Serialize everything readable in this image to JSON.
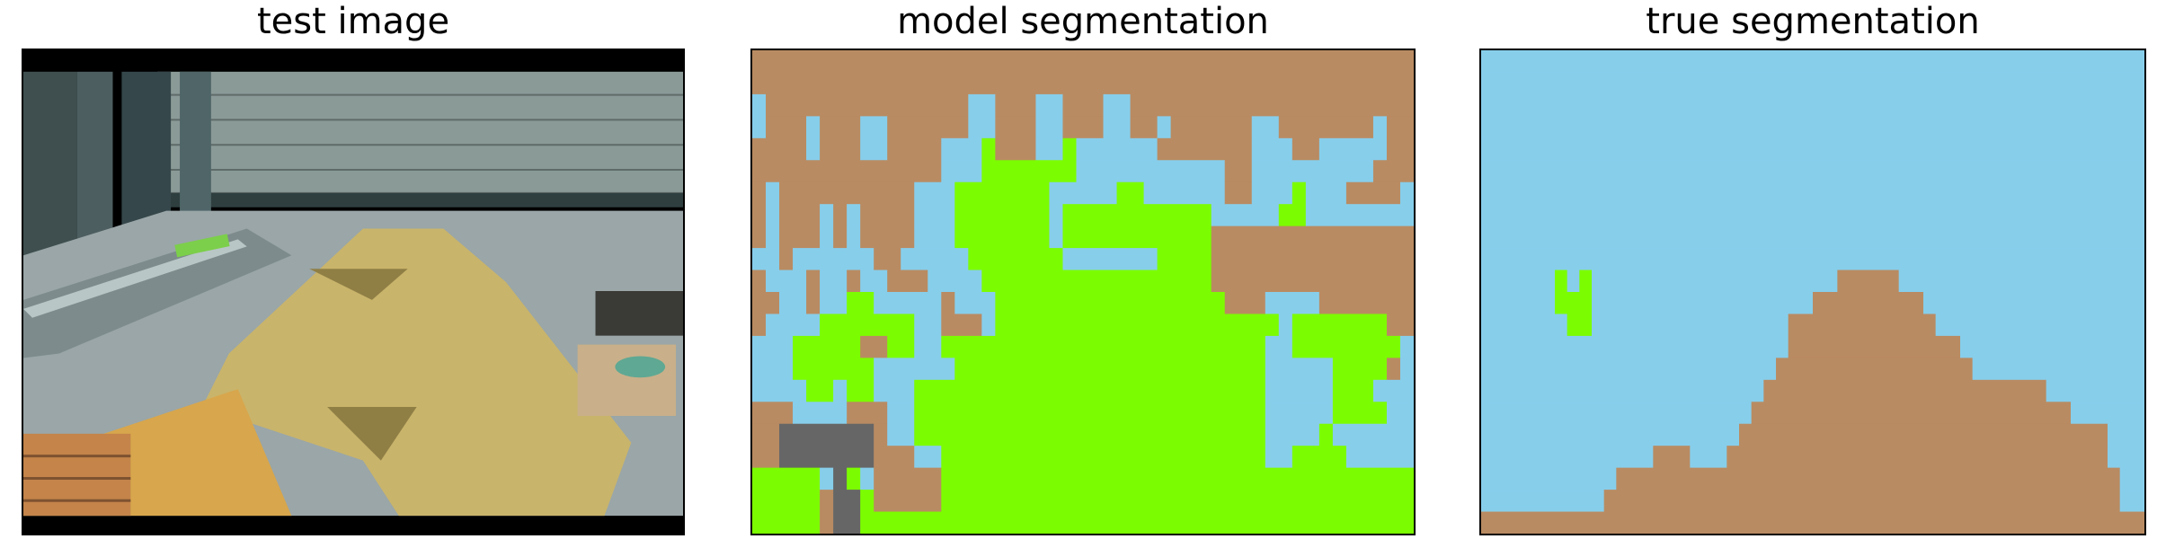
{
  "panels": {
    "test_image": {
      "title": "test image"
    },
    "model_segmentation": {
      "title": "model segmentation"
    },
    "true_segmentation": {
      "title": "true segmentation"
    }
  },
  "colors": {
    "sky_blue": "#87ceeb",
    "brown": "#b98b62",
    "green": "#7cfc00",
    "gray": "#666666"
  },
  "legend_codes": {
    "B": "sky_blue",
    "O": "brown",
    "G": "green",
    "D": "gray"
  },
  "model_segmentation_grid": [
    "OOOOOOOOOOOOOOOOOOOOOOOOOOOOOOOOOOOOOOOOOOOOOOOOO",
    "OOOOOOOOOOOOOOOOOOOOOOOOOOOOOOOOOOOOOOOOOOOOOOOOO",
    "BOOOOOOOOOOOOOOOBBOOOBBOOOBBOOOOOOOOOOOOOOOOOOOOO",
    "BOOOBOOOBBOOOOOOBBOOOBBOOOBBOOBOOOOOOBBOOOOOOOBOO",
    "OOOOBOOOBBOOOOBBBGOOOBBGBBBBBBOOOOOOOBBBOOBBBBBOO",
    "OOOOOOOOOOOOOOBBBGGGGGGGBBBBBBBBBBBOOBBBBBBBBBOOO",
    "OBOOOOOOOOOOBBBGGGGGGGBBBBBGGBBBBBBOOBBBGBBBOOOOB",
    "OBOOOBOBOOOOBBBGGGGGGGBGGGGGGGGGGGBBBBBGGBBBBBBBB",
    "OBOOOBOBOOOOBBBGGGGGGGBGGGGGGGGGGGOOOOOOOOOOOOOOO",
    "BBOBBBBBBOOBBBBBGGGGGGGBBBBBBBGGGGOOOOOOOOOOOOOOO",
    "OBBBOBBOBBOOOBBBBGGGGGGGGGGGGGGGGGOOOOOOOOOOOOOOO",
    "OOBBOBBGGBBBBBOBBBGGGGGGGGGGGGGGGGGOOOBBBBOOOOOOO",
    "OBBBBGGGGGGGBBOOOBGGGGGGGGGGGGGGGGGGGGGBGGGGGGGOO",
    "BBBGGGGGOOGGBBGGGGGGGGGGGGGGGGGGGGGGGGBBGGGGGGGGB",
    "BBBGGGGGGBBBBBBGGGGGGGGGGGGGGGGGGGGGGGBBBBBGGGGOB",
    "BBBBGGBGGBBBGGGGGGGGGGGGGGGGGGGGGGGGGGBBBBBGGGBBB",
    "OOOBBBBOOOBBGGGGGGGGGGGGGGGGGGGGGGGGGGBBBBBGGGGBB",
    "OODDDDDDDOBBGGGGGGGGGGGGGGGGGGGGGGGGGGBBBBGBBBBBB",
    "OODDDDDDDOOOBBGGGGGGGGGGGGGGGGGGGGGGGGBBGGGGBBBBB",
    "GGGGGBDGBOOOOOGGGGGGGGGGGGGGGGGGGGGGGGGGGGGGGGGGG",
    "GGGGGODDGOOOOOGGGGGGGGGGGGGGGGGGGGGGGGGGGGGGGGGGG",
    "GGGGGODDGGGGGGGGGGGGGGGGGGGGGGGGGGGGGGGGGGGGGGGGG"
  ],
  "true_segmentation_grid": [
    "BBBBBBBBBBBBBBBBBBBBBBBBBBBBBBBBBBBBBBBBBBBBBBBBBBBBBB",
    "BBBBBBBBBBBBBBBBBBBBBBBBBBBBBBBBBBBBBBBBBBBBBBBBBBBBBB",
    "BBBBBBBBBBBBBBBBBBBBBBBBBBBBBBBBBBBBBBBBBBBBBBBBBBBBBB",
    "BBBBBBBBBBBBBBBBBBBBBBBBBBBBBBBBBBBBBBBBBBBBBBBBBBBBBB",
    "BBBBBBBBBBBBBBBBBBBBBBBBBBBBBBBBBBBBBBBBBBBBBBBBBBBBBB",
    "BBBBBBBBBBBBBBBBBBBBBBBBBBBBBBBBBBBBBBBBBBBBBBBBBBBBBB",
    "BBBBBBBBBBBBBBBBBBBBBBBBBBBBBBBBBBBBBBBBBBBBBBBBBBBBBB",
    "BBBBBBBBBBBBBBBBBBBBBBBBBBBBBBBBBBBBBBBBBBBBBBBBBBBBBB",
    "BBBBBBBBBBBBBBBBBBBBBBBBBBBBBBBBBBBBBBBBBBBBBBBBBBBBBB",
    "BBBBBBBBBBBBBBBBBBBBBBBBBBBBBBBBBBBBBBBBBBBBBBBBBBBBBB",
    "BBBBBBGBGBBBBBBBBBBBBBBBBBBBBOOOOOBBBBBBBBBBBBBBBBBBBB",
    "BBBBBBGGGBBBBBBBBBBBBBBBBBBOOOOOOOOOBBBBBBBBBBBBBBBBBB",
    "BBBBBBBGGBBBBBBBBBBBBBBBBOOOOOOOOOOOOBBBBBBBBBBBBBBBBB",
    "BBBBBBBBBBBBBBBBBBBBBBBBBOOOOOOOOOOOOOOBBBBBBBBBBBBBBB",
    "BBBBBBBBBBBBBBBBBBBBBBBBOOOOOOOOOOOOOOOOBBBBBBBBBBBBBB",
    "BBBBBBBBBBBBBBBBBBBBBBBOOOOOOOOOOOOOOOOOOOOOOOBBBBBBBB",
    "BBBBBBBBBBBBBBBBBBBBBBOOOOOOOOOOOOOOOOOOOOOOOOOOBBBBBB",
    "BBBBBBBBBBBBBBBBBBBBBOOOOOOOOOOOOOOOOOOOOOOOOOOOOOOBBB",
    "BBBBBBBBBBBBBBOOOBBBOOOOOOOOOOOOOOOOOOOOOOOOOOOOOOOBBB",
    "BBBBBBBBBBBOOOOOOOOOOOOOOOOOOOOOOOOOOOOOOOOOOOOOOOOOBB",
    "BBBBBBBBBBOOOOOOOOOOOOOOOOOOOOOOOOOOOOOOOOOOOOOOOOOOBB",
    "OOOOOOOOOOOOOOOOOOOOOOOOOOOOOOOOOOOOOOOOOOOOOOOOOOOOOO"
  ]
}
